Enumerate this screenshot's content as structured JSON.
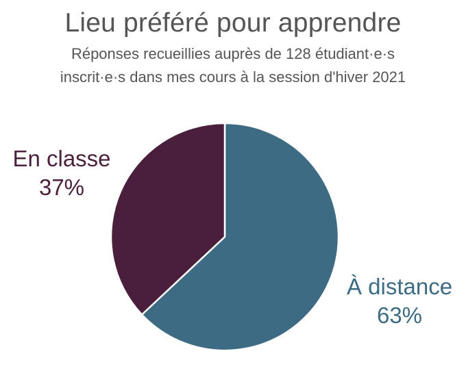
{
  "chart_data": {
    "type": "pie",
    "title": "Lieu préféré pour apprendre",
    "subtitle": [
      "Réponses recueillies auprès de 128 étudiant·e·s",
      "inscrit·e·s dans mes cours à la session d'hiver 2021"
    ],
    "slices": [
      {
        "label": "À distance",
        "value": 63,
        "value_label": "63%",
        "color": "#3d6b84"
      },
      {
        "label": "En classe",
        "value": 37,
        "value_label": "37%",
        "color": "#4a1f3b"
      }
    ],
    "start_angle": "12 o'clock",
    "direction": "clockwise"
  }
}
